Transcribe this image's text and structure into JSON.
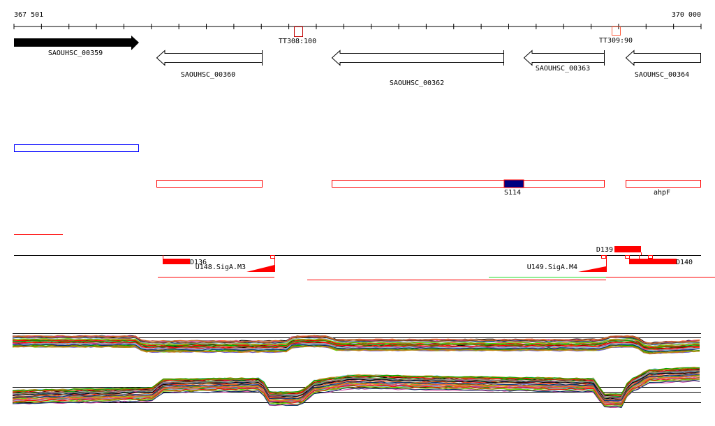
{
  "ruler": {
    "start_label": "367 501",
    "end_label": "370 000"
  },
  "terminators": [
    {
      "label": "TT308:100",
      "color": "#c00000"
    },
    {
      "label": "TT309:90",
      "color": "#ff6040"
    }
  ],
  "genes": [
    {
      "label": "SAOUHSC_00359",
      "strand": "+",
      "filled": true
    },
    {
      "label": "SAOUHSC_00360",
      "strand": "-",
      "filled": false
    },
    {
      "label": "SAOUHSC_00362",
      "strand": "-",
      "filled": false
    },
    {
      "label": "SAOUHSC_00363",
      "strand": "-",
      "filled": false
    },
    {
      "label": "SAOUHSC_00364",
      "strand": "-",
      "filled": false
    }
  ],
  "features": {
    "s114_label": "S114",
    "ahpf_label": "ahpF",
    "colors": {
      "blue": "#0000ff",
      "red": "#ff0000",
      "navy": "#000080",
      "green": "#00dd00"
    }
  },
  "sites": {
    "d136": "D136",
    "d139": "D139",
    "d140": "D140",
    "u148": "U148.SigA.M3",
    "u149": "U149.SigA.M4"
  },
  "expression": {
    "palette": [
      "#000000",
      "#b8860b",
      "#ff6633",
      "#66dd00",
      "#cc3399",
      "#87ceeb",
      "#8b4513",
      "#999999",
      "#d2691e",
      "#003366",
      "#ff0000",
      "#00aa00",
      "#6a5acd",
      "#808000"
    ]
  }
}
